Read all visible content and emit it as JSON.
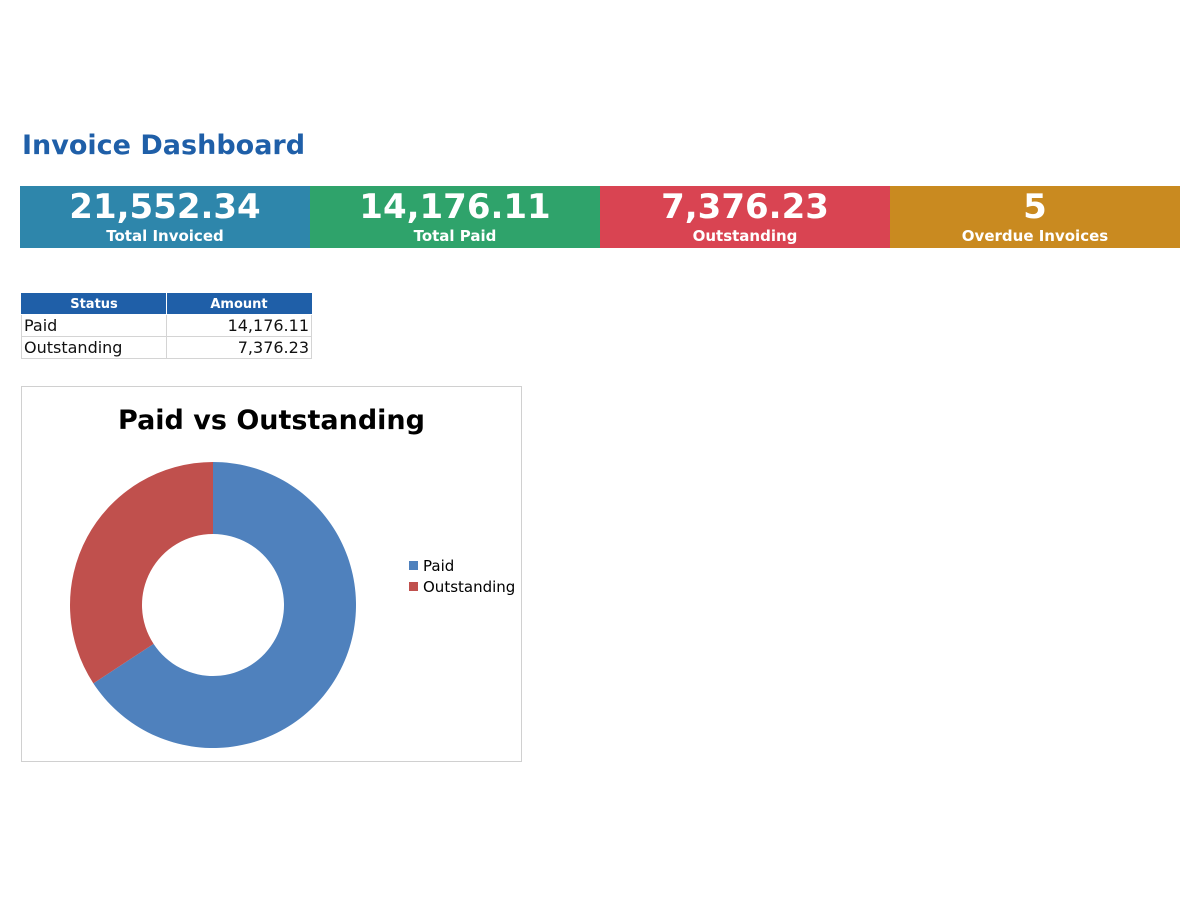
{
  "dashboard": {
    "title": "Invoice Dashboard"
  },
  "kpis": [
    {
      "value": "21,552.34",
      "label": "Total Invoiced",
      "color": "#2e86ab"
    },
    {
      "value": "14,176.11",
      "label": "Total Paid",
      "color": "#2fa36b"
    },
    {
      "value": "7,376.23",
      "label": "Outstanding",
      "color": "#d94452"
    },
    {
      "value": "5",
      "label": "Overdue Invoices",
      "color": "#c98a20"
    }
  ],
  "summary_table": {
    "headers": [
      "Status",
      "Amount"
    ],
    "rows": [
      {
        "status": "Paid",
        "amount": "14,176.11"
      },
      {
        "status": "Outstanding",
        "amount": "7,376.23"
      }
    ]
  },
  "chart_data": {
    "type": "pie",
    "variant": "doughnut",
    "title": "Paid vs Outstanding",
    "categories": [
      "Paid",
      "Outstanding"
    ],
    "values": [
      14176.11,
      7376.23
    ],
    "colors": [
      "#4f81bd",
      "#c0504d"
    ],
    "legend_position": "right"
  },
  "colors": {
    "title": "#1f5fa8",
    "table_header": "#1f5fa8"
  }
}
